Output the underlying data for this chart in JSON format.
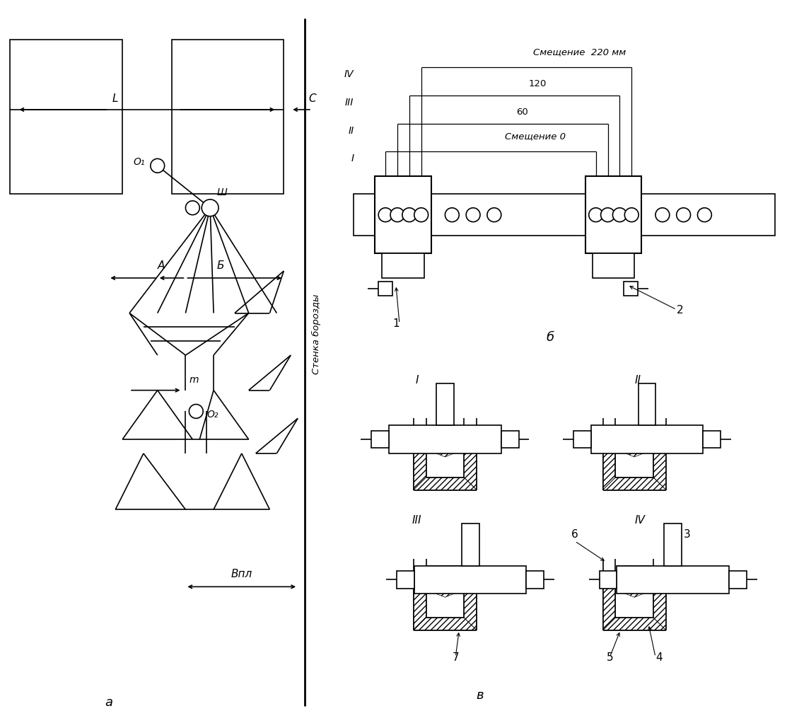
{
  "bg_color": "#ffffff",
  "fig_width": 11.13,
  "fig_height": 10.22,
  "label_a": "a",
  "label_b": "б",
  "label_v": "в",
  "text_stenka": "Стенка борозды",
  "text_smesh_220": "Смещение  220 мм",
  "text_120": "120",
  "text_60": "60",
  "text_smesh_0": "Смещение 0",
  "text_L": "L",
  "text_C": "C",
  "text_O1": "O₁",
  "text_Sh": "Ш",
  "text_B": "Б",
  "text_A": "A",
  "text_m": "m",
  "text_O2": "O₂",
  "text_Vpl": "Bпл",
  "text_1": "1",
  "text_2": "2",
  "text_3": "3",
  "text_4": "4",
  "text_5": "5",
  "text_6": "6",
  "text_7": "7",
  "roman_I": "I",
  "roman_II": "II",
  "roman_III": "III",
  "roman_IV": "IV"
}
